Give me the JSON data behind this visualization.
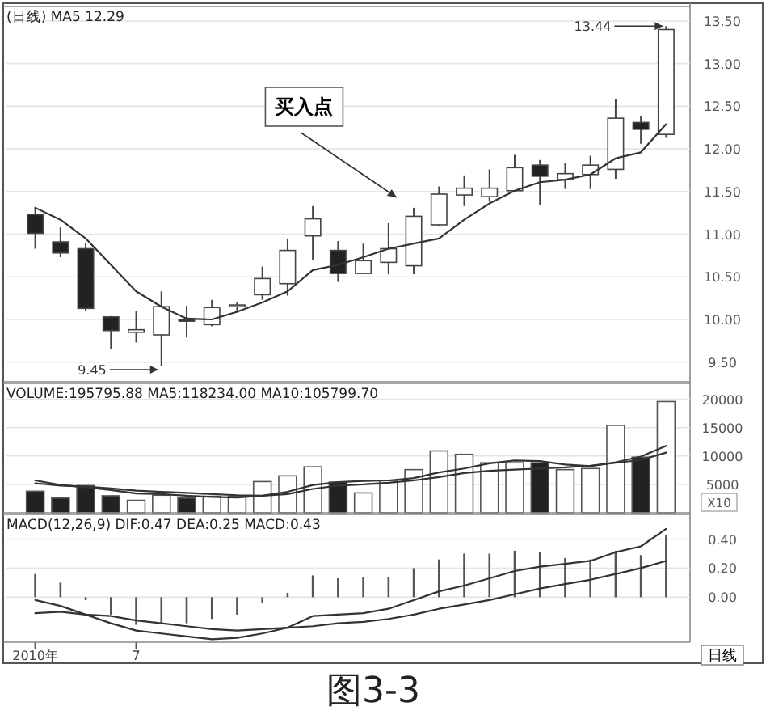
{
  "chart_data": [
    {
      "type": "candlestick",
      "title": "(日线) MA5 12.29",
      "categories": [
        null,
        null,
        null,
        null,
        null,
        null,
        null,
        null,
        null,
        null,
        null,
        null,
        null,
        null,
        null,
        null,
        null,
        null,
        null,
        null,
        null,
        null,
        null,
        null,
        null,
        null
      ],
      "ohlc": [
        [
          11.23,
          11.31,
          10.83,
          11.01
        ],
        [
          10.91,
          11.08,
          10.73,
          10.78
        ],
        [
          10.83,
          10.9,
          10.1,
          10.13
        ],
        [
          10.03,
          10.04,
          9.65,
          9.87
        ],
        [
          9.85,
          10.1,
          9.73,
          9.88
        ],
        [
          9.82,
          10.33,
          9.45,
          10.15
        ],
        [
          10.0,
          10.16,
          9.79,
          9.98
        ],
        [
          9.94,
          10.23,
          9.92,
          10.14
        ],
        [
          10.15,
          10.2,
          10.08,
          10.17
        ],
        [
          10.29,
          10.62,
          10.23,
          10.48
        ],
        [
          10.42,
          10.95,
          10.28,
          10.81
        ],
        [
          10.98,
          11.33,
          10.7,
          11.18
        ],
        [
          10.81,
          10.92,
          10.44,
          10.54
        ],
        [
          10.54,
          10.89,
          10.54,
          10.69
        ],
        [
          10.67,
          11.13,
          10.53,
          10.83
        ],
        [
          10.63,
          11.31,
          10.53,
          11.21
        ],
        [
          11.11,
          11.56,
          11.09,
          11.47
        ],
        [
          11.46,
          11.69,
          11.33,
          11.54
        ],
        [
          11.44,
          11.76,
          11.38,
          11.54
        ],
        [
          11.51,
          11.93,
          11.5,
          11.78
        ],
        [
          11.81,
          11.87,
          11.34,
          11.68
        ],
        [
          11.64,
          11.83,
          11.53,
          11.71
        ],
        [
          11.7,
          11.92,
          11.53,
          11.81
        ],
        [
          11.76,
          12.58,
          11.65,
          12.36
        ],
        [
          12.31,
          12.39,
          12.06,
          12.23
        ],
        [
          12.17,
          13.44,
          12.13,
          13.4
        ]
      ],
      "series": [
        {
          "type": "line",
          "color": "#333333",
          "values": [
            11.31,
            11.17,
            10.95,
            10.64,
            10.33,
            10.15,
            10.01,
            10.0,
            10.09,
            10.2,
            10.33,
            10.58,
            10.64,
            10.73,
            10.83,
            10.89,
            10.95,
            11.17,
            11.36,
            11.51,
            11.61,
            11.64,
            11.7,
            11.89,
            11.96,
            12.29
          ]
        }
      ],
      "ylim": [
        9.27,
        13.67
      ],
      "yticks": [
        {
          "value": 9.5,
          "label": "9.50"
        },
        {
          "value": 10,
          "label": "10.00"
        },
        {
          "value": 10.5,
          "label": "10.50"
        },
        {
          "value": 11,
          "label": "11.00"
        },
        {
          "value": 11.5,
          "label": "11.50"
        },
        {
          "value": 12,
          "label": "12.00"
        },
        {
          "value": 12.5,
          "label": "12.50"
        },
        {
          "value": 13,
          "label": "13.00"
        },
        {
          "value": 13.5,
          "label": "13.50"
        }
      ],
      "grid": "y",
      "tick_labels": "y",
      "annotations": [
        "买入点",
        "13.44",
        "9.45"
      ]
    },
    {
      "type": "bar",
      "title": "VOLUME:195795.88  MA5:118234.00  MA10:105799.70",
      "categories": [
        null,
        null,
        null,
        null,
        null,
        null,
        null,
        null,
        null,
        null,
        null,
        null,
        null,
        null,
        null,
        null,
        null,
        null,
        null,
        null,
        null,
        null,
        null,
        null,
        null,
        null
      ],
      "series": [
        {
          "type": "bar",
          "values": [
            3800,
            2600,
            4800,
            3000,
            2200,
            3100,
            2600,
            2900,
            2900,
            5500,
            6500,
            8100,
            5400,
            3500,
            5700,
            7600,
            10900,
            10300,
            8800,
            8800,
            8800,
            7600,
            7800,
            15400,
            9800,
            19600
          ],
          "colors": [
            "#222222",
            "#222222",
            "#222222",
            "#222222",
            "#ffffff",
            "#ffffff",
            "#222222",
            "#ffffff",
            "#ffffff",
            "#ffffff",
            "#ffffff",
            "#ffffff",
            "#222222",
            "#ffffff",
            "#ffffff",
            "#ffffff",
            "#ffffff",
            "#ffffff",
            "#ffffff",
            "#ffffff",
            "#222222",
            "#ffffff",
            "#ffffff",
            "#ffffff",
            "#222222",
            "#ffffff"
          ]
        },
        {
          "type": "line",
          "color": "#333333",
          "values": [
            5700,
            4900,
            4500,
            4000,
            3400,
            3300,
            3000,
            2800,
            2700,
            3000,
            3700,
            4900,
            5400,
            5600,
            5700,
            6100,
            7100,
            7800,
            8700,
            9200,
            9100,
            8500,
            8200,
            8900,
            9900,
            11800
          ]
        },
        {
          "type": "line",
          "color": "#333333",
          "values": [
            5200,
            4800,
            4600,
            4300,
            3900,
            3700,
            3500,
            3300,
            3100,
            3000,
            3300,
            4200,
            4800,
            5000,
            5300,
            5700,
            6300,
            7000,
            7400,
            7600,
            7800,
            8000,
            8300,
            8800,
            9300,
            10600
          ]
        }
      ],
      "ylim": [
        0,
        22800
      ],
      "yticks": [
        5000,
        10000,
        15000,
        20000
      ],
      "grid": "y",
      "tick_labels": "y",
      "annotations": [
        "X10"
      ]
    },
    {
      "type": "bar",
      "title": "MACD(12,26,9)  DIF:0.47  DEA:0.25  MACD:0.43",
      "categories": [
        "2010年",
        null,
        null,
        null,
        "7",
        null,
        null,
        null,
        null,
        null,
        null,
        null,
        null,
        null,
        null,
        null,
        null,
        null,
        null,
        null,
        null,
        null,
        null,
        null,
        null,
        null
      ],
      "series": [
        {
          "type": "bar",
          "color": "#555555",
          "values": [
            0.16,
            0.1,
            -0.02,
            -0.12,
            -0.19,
            -0.18,
            -0.18,
            -0.15,
            -0.12,
            -0.04,
            0.03,
            0.15,
            0.13,
            0.14,
            0.14,
            0.2,
            0.26,
            0.3,
            0.3,
            0.32,
            0.31,
            0.27,
            0.26,
            0.32,
            0.29,
            0.43
          ]
        },
        {
          "type": "line",
          "color": "#333333",
          "values": [
            -0.02,
            -0.06,
            -0.12,
            -0.18,
            -0.23,
            -0.25,
            -0.27,
            -0.29,
            -0.28,
            -0.25,
            -0.21,
            -0.13,
            -0.12,
            -0.11,
            -0.08,
            -0.02,
            0.04,
            0.08,
            0.13,
            0.18,
            0.21,
            0.23,
            0.25,
            0.31,
            0.35,
            0.47
          ]
        },
        {
          "type": "line",
          "color": "#333333",
          "values": [
            -0.11,
            -0.1,
            -0.12,
            -0.13,
            -0.16,
            -0.18,
            -0.2,
            -0.22,
            -0.23,
            -0.22,
            -0.21,
            -0.2,
            -0.18,
            -0.17,
            -0.15,
            -0.12,
            -0.08,
            -0.05,
            -0.02,
            0.02,
            0.06,
            0.09,
            0.12,
            0.16,
            0.2,
            0.25
          ]
        }
      ],
      "ylim": [
        -0.31,
        0.57
      ],
      "yticks": [
        {
          "value": 0,
          "label": "0.00"
        },
        {
          "value": 0.2,
          "label": "0.20"
        },
        {
          "value": 0.4,
          "label": "0.40"
        }
      ],
      "grid": "y",
      "xlabel": "日线",
      "annotations": [
        "图3-3"
      ]
    }
  ]
}
